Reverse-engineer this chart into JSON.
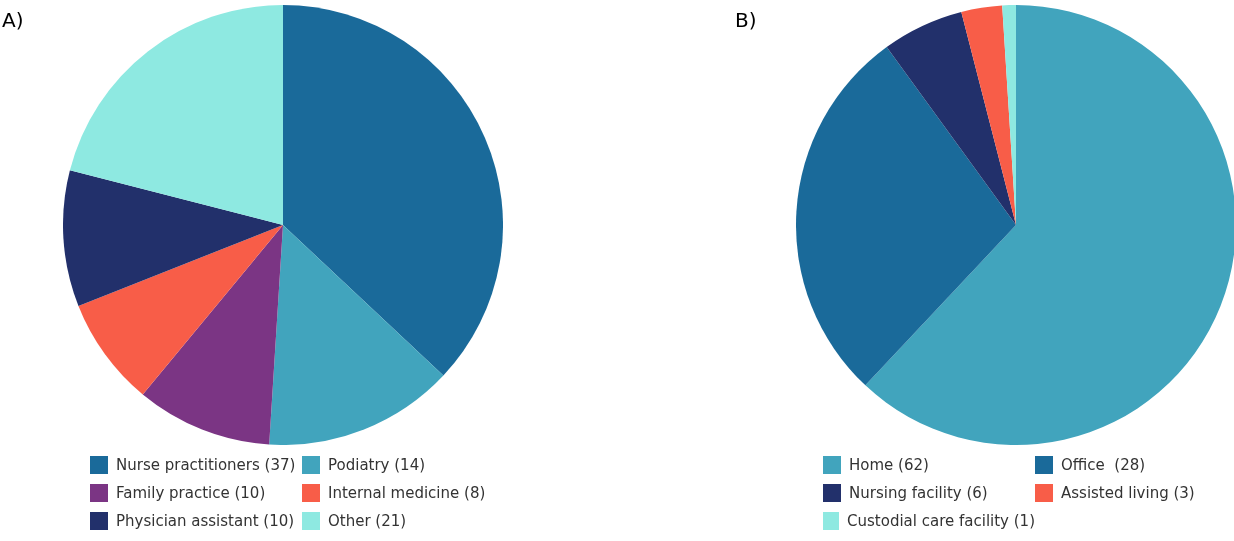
{
  "chart_data": [
    {
      "type": "pie",
      "title": "A)",
      "categories": [
        "Nurse practitioners (37)",
        "Podiatry (14)",
        "Family practice (10)",
        "Internal medicine (8)",
        "Physician assistant (10)",
        "Other (21)"
      ],
      "values": [
        37,
        14,
        10,
        8,
        10,
        21
      ],
      "colors": [
        "#1a6a9a",
        "#41a4bd",
        "#7b3584",
        "#f85d48",
        "#22306b",
        "#8ee9e1"
      ],
      "legend": "bottom"
    },
    {
      "type": "pie",
      "title": "B)",
      "categories": [
        "Home (62)",
        "Office  (28)",
        "Nursing facility (6)",
        "Assisted living (3)",
        "Custodial care facility (1)"
      ],
      "values": [
        62,
        28,
        6,
        3,
        1
      ],
      "colors": [
        "#41a4bd",
        "#1a6a9a",
        "#22306b",
        "#f85d48",
        "#8ee9e1"
      ],
      "legend": "bottom"
    }
  ]
}
